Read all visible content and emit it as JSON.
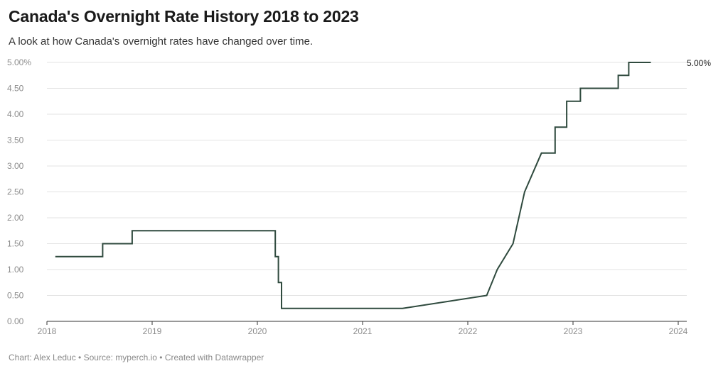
{
  "title": "Canada's Overnight Rate History 2018 to 2023",
  "subtitle": "A look at how Canada's overnight rates have changed over time.",
  "footer": "Chart: Alex Leduc • Source: myperch.io • Created with Datawrapper",
  "chart_data": {
    "type": "line",
    "title": "Canada's Overnight Rate History 2018 to 2023",
    "subtitle": "A look at how Canada's overnight rates have changed over time.",
    "xlabel": "",
    "ylabel": "",
    "xlim": [
      2018,
      2024
    ],
    "ylim": [
      0,
      5
    ],
    "x_ticks": [
      "2018",
      "2019",
      "2020",
      "2021",
      "2022",
      "2023",
      "2024"
    ],
    "y_ticks": [
      "0.00",
      "0.50",
      "1.00",
      "1.50",
      "2.00",
      "2.50",
      "3.00",
      "3.50",
      "4.00",
      "4.50",
      "5.00%"
    ],
    "grid": "horizontal",
    "line_color": "#2f4a3e",
    "end_label": "5.00%",
    "series": [
      {
        "x": [
          2018.08,
          2018.53,
          2018.53,
          2018.81,
          2018.81,
          2020.17,
          2020.17,
          2020.2,
          2020.2,
          2020.23,
          2020.23,
          2021.38,
          2022.18,
          2022.28,
          2022.43,
          2022.54,
          2022.7,
          2022.83,
          2022.83,
          2022.94,
          2022.94,
          2023.07,
          2023.07,
          2023.43,
          2023.43,
          2023.53,
          2023.53,
          2023.74
        ],
        "y": [
          1.25,
          1.25,
          1.5,
          1.5,
          1.75,
          1.75,
          1.25,
          1.25,
          0.75,
          0.75,
          0.25,
          0.25,
          0.5,
          1.0,
          1.5,
          2.5,
          3.25,
          3.25,
          3.75,
          3.75,
          4.25,
          4.25,
          4.5,
          4.5,
          4.75,
          4.75,
          5.0,
          5.0
        ]
      }
    ]
  }
}
